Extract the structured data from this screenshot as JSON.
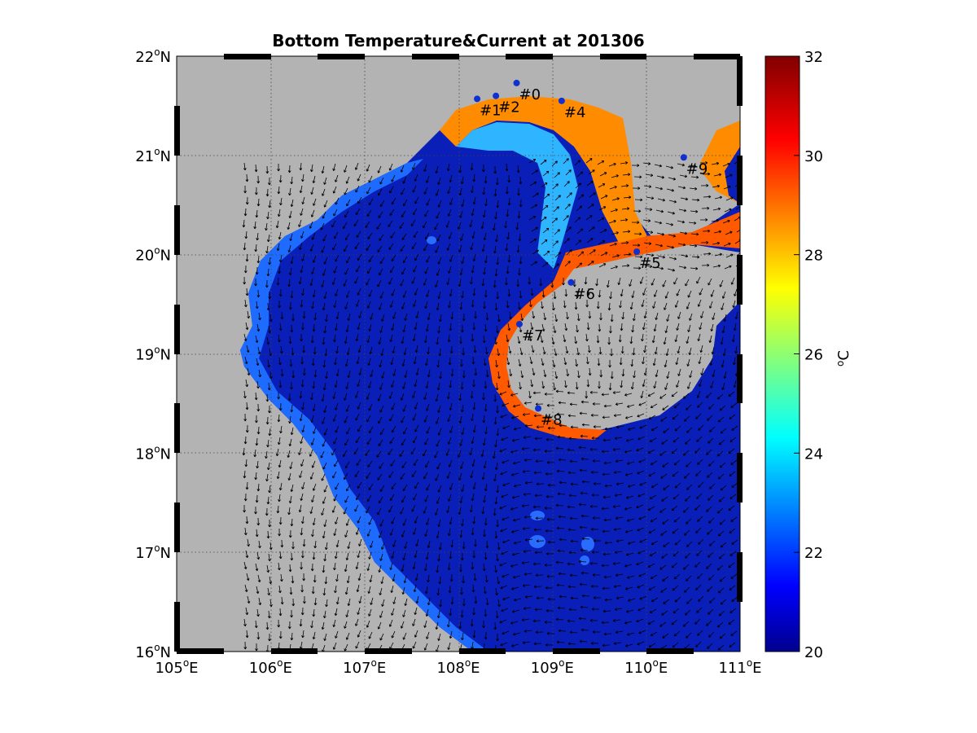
{
  "title": "Bottom Temperature&Current at 201306",
  "map": {
    "x_ticks": [
      {
        "deg": "105",
        "dir": "E"
      },
      {
        "deg": "106",
        "dir": "E"
      },
      {
        "deg": "107",
        "dir": "E"
      },
      {
        "deg": "108",
        "dir": "E"
      },
      {
        "deg": "109",
        "dir": "E"
      },
      {
        "deg": "110",
        "dir": "E"
      },
      {
        "deg": "111",
        "dir": "E"
      }
    ],
    "y_ticks": [
      {
        "deg": "22",
        "dir": "N"
      },
      {
        "deg": "21",
        "dir": "N"
      },
      {
        "deg": "20",
        "dir": "N"
      },
      {
        "deg": "19",
        "dir": "N"
      },
      {
        "deg": "18",
        "dir": "N"
      },
      {
        "deg": "17",
        "dir": "N"
      },
      {
        "deg": "16",
        "dir": "N"
      }
    ],
    "lon_range": [
      105,
      111
    ],
    "lat_range": [
      16,
      22
    ],
    "land_color": "#b3b3b3",
    "ocean_cold_color": "#0a1fb8",
    "stations": [
      {
        "label": "#0",
        "lon": 108.62,
        "lat": 21.73
      },
      {
        "label": "#1",
        "lon": 108.2,
        "lat": 21.57
      },
      {
        "label": "#2",
        "lon": 108.4,
        "lat": 21.6
      },
      {
        "label": "#4",
        "lon": 109.1,
        "lat": 21.55
      },
      {
        "label": "#9",
        "lon": 110.4,
        "lat": 20.98
      },
      {
        "label": "#5",
        "lon": 109.9,
        "lat": 20.03
      },
      {
        "label": "#6",
        "lon": 109.2,
        "lat": 19.72
      },
      {
        "label": "#7",
        "lon": 108.65,
        "lat": 19.3
      },
      {
        "label": "#8",
        "lon": 108.85,
        "lat": 18.45
      }
    ]
  },
  "colorbar": {
    "min": 20,
    "max": 32,
    "ticks": [
      "32",
      "30",
      "28",
      "26",
      "24",
      "22",
      "20"
    ],
    "unit_sup": "o",
    "unit": "C",
    "colormap": "jet"
  }
}
